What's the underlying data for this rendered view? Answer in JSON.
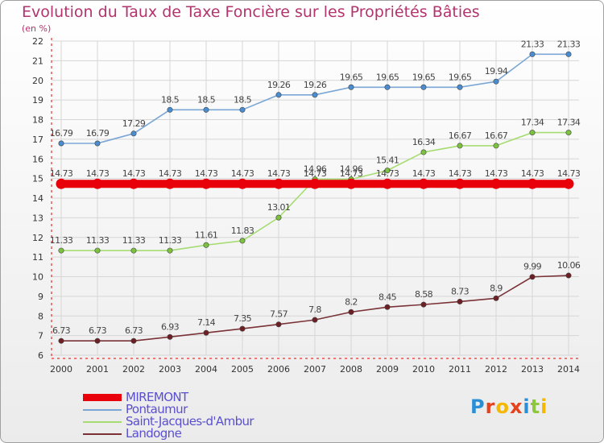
{
  "title": "Evolution du Taux de Taxe Foncière sur les Propriétés Bâties",
  "subtitle": "(en %)",
  "logo": {
    "text": "Proxiti",
    "letters": [
      {
        "ch": "P",
        "color": "#2a8fd6"
      },
      {
        "ch": "r",
        "color": "#e6421c"
      },
      {
        "ch": "o",
        "color": "#f4b800"
      },
      {
        "ch": "x",
        "color": "#e6421c"
      },
      {
        "ch": "i",
        "color": "#2a8fd6"
      },
      {
        "ch": "t",
        "color": "#8dc63f"
      },
      {
        "ch": "i",
        "color": "#f4b800"
      }
    ]
  },
  "chart_data": {
    "type": "line",
    "title": "Evolution du Taux de Taxe Foncière sur les Propriétés Bâties",
    "ylabel": "(en %)",
    "xlabel": "",
    "ylim": [
      6,
      22
    ],
    "yticks": [
      6,
      7,
      8,
      9,
      10,
      11,
      12,
      13,
      14,
      15,
      16,
      17,
      18,
      19,
      20,
      21,
      22
    ],
    "categories": [
      "2000",
      "2001",
      "2002",
      "2003",
      "2004",
      "2005",
      "2006",
      "2007",
      "2008",
      "2009",
      "2010",
      "2011",
      "2012",
      "2013",
      "2014"
    ],
    "legend_position": "bottom-left",
    "series": [
      {
        "name": "MIREMONT",
        "color": "#e8000b",
        "values": [
          14.73,
          14.73,
          14.73,
          14.73,
          14.73,
          14.73,
          14.73,
          14.73,
          14.73,
          14.73,
          14.73,
          14.73,
          14.73,
          14.73,
          14.73
        ],
        "labels": [
          "14.73",
          "14.73",
          "14.73",
          "14.73",
          "14.73",
          "14.73",
          "14.73",
          "14.73",
          "14.73",
          "14.73",
          "14.73",
          "14.73",
          "14.73",
          "14.73",
          "14.73"
        ]
      },
      {
        "name": "Pontaumur",
        "color": "#7ba7d6",
        "marker_color": "#4a8cd0",
        "values": [
          16.79,
          16.79,
          17.29,
          18.5,
          18.5,
          18.5,
          19.26,
          19.26,
          19.65,
          19.65,
          19.65,
          19.65,
          19.94,
          21.33,
          21.33
        ],
        "labels": [
          "16.79",
          "16.79",
          "17.29",
          "18.5",
          "18.5",
          "18.5",
          "19.26",
          "19.26",
          "19.65",
          "19.65",
          "19.65",
          "19.65",
          "19.94",
          "21.33",
          "21.33"
        ]
      },
      {
        "name": "Saint-Jacques-d'Ambur",
        "color": "#a6dc72",
        "marker_color": "#7cc23f",
        "values": [
          11.33,
          11.33,
          11.33,
          11.33,
          11.61,
          11.83,
          13.01,
          14.96,
          14.96,
          15.41,
          16.34,
          16.67,
          16.67,
          17.34,
          17.34
        ],
        "labels": [
          "11.33",
          "11.33",
          "11.33",
          "11.33",
          "11.61",
          "11.83",
          "13.01",
          "14.96",
          "14.96",
          "15.41",
          "16.34",
          "16.67",
          "16.67",
          "17.34",
          "17.34"
        ]
      },
      {
        "name": "Landogne",
        "color": "#7a3236",
        "marker_color": "#6e1f24",
        "values": [
          6.73,
          6.73,
          6.73,
          6.93,
          7.14,
          7.35,
          7.57,
          7.8,
          8.2,
          8.45,
          8.58,
          8.73,
          8.9,
          9.99,
          10.06
        ],
        "labels": [
          "6.73",
          "6.73",
          "6.73",
          "6.93",
          "7.14",
          "7.35",
          "7.57",
          "7.8",
          "8.2",
          "8.45",
          "8.58",
          "8.73",
          "8.9",
          "9.99",
          "10.06"
        ]
      }
    ]
  }
}
